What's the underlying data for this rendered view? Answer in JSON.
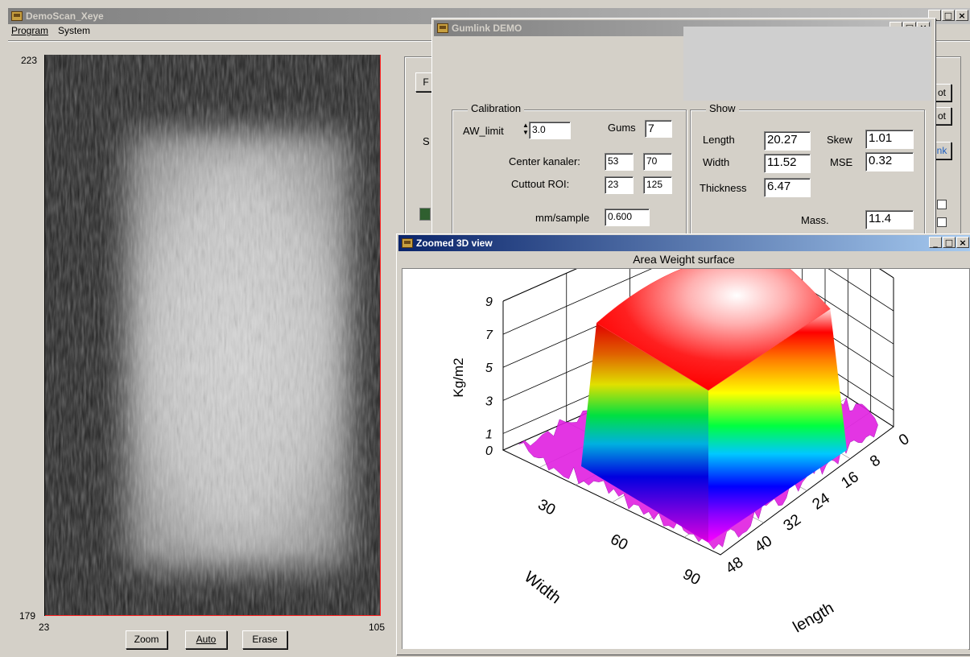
{
  "main_window": {
    "title": "DemoScan_Xeye",
    "menu": [
      "Program",
      "System"
    ],
    "image_axes": {
      "y_top": "223",
      "y_bottom": "179",
      "x_left": "23",
      "x_right": "105"
    },
    "buttons": {
      "zoom": "Zoom",
      "auto": "Auto",
      "erase": "Erase"
    },
    "side_buttons": [
      "F",
      "ot",
      "ot",
      "nk"
    ],
    "side_label": "S"
  },
  "gumlink": {
    "title": "Gumlink DEMO",
    "calibration": {
      "title": "Calibration",
      "aw_limit_label": "AW_limit",
      "aw_limit_value": "3.0",
      "gums_label": "Gums",
      "gums_value": "7",
      "center_label": "Center kanaler:",
      "center_values": [
        "53",
        "70"
      ],
      "cutout_label": "Cuttout ROI:",
      "cutout_values": [
        "23",
        "125"
      ],
      "mm_label": "mm/sample",
      "mm_value": "0.600"
    },
    "show": {
      "title": "Show",
      "length_label": "Length",
      "length_value": "20.27",
      "width_label": "Width",
      "width_value": "11.52",
      "thickness_label": "Thickness",
      "thickness_value": "6.47",
      "skew_label": "Skew",
      "skew_value": "1.01",
      "mse_label": "MSE",
      "mse_value": "0.32",
      "mass_label": "Mass.",
      "mass_value": "11.4"
    }
  },
  "zoom3d": {
    "title": "Zoomed 3D view",
    "plot_title": "Area Weight surface",
    "z_label": "Kg/m2",
    "z_ticks": [
      "0",
      "1",
      "3",
      "5",
      "7",
      "9"
    ],
    "width_label": "Width",
    "width_ticks": [
      "30",
      "60",
      "90"
    ],
    "length_label": "length",
    "length_ticks": [
      "0",
      "8",
      "16",
      "24",
      "32",
      "40",
      "48"
    ]
  },
  "chart_data": {
    "type": "surface",
    "title": "Area Weight surface",
    "xlabel": "length",
    "ylabel": "Width",
    "zlabel": "Kg/m2",
    "x_ticks": [
      0,
      8,
      16,
      24,
      32,
      40,
      48
    ],
    "y_ticks": [
      30,
      60,
      90
    ],
    "z_ticks": [
      0,
      1,
      3,
      5,
      7,
      9
    ],
    "zlim": [
      0,
      9
    ],
    "colormap": [
      "#ff00ff",
      "#0000ff",
      "#00ffff",
      "#00ff00",
      "#ffff00",
      "#ff0000",
      "#ffffff"
    ],
    "plateau_max": 8.5
  }
}
